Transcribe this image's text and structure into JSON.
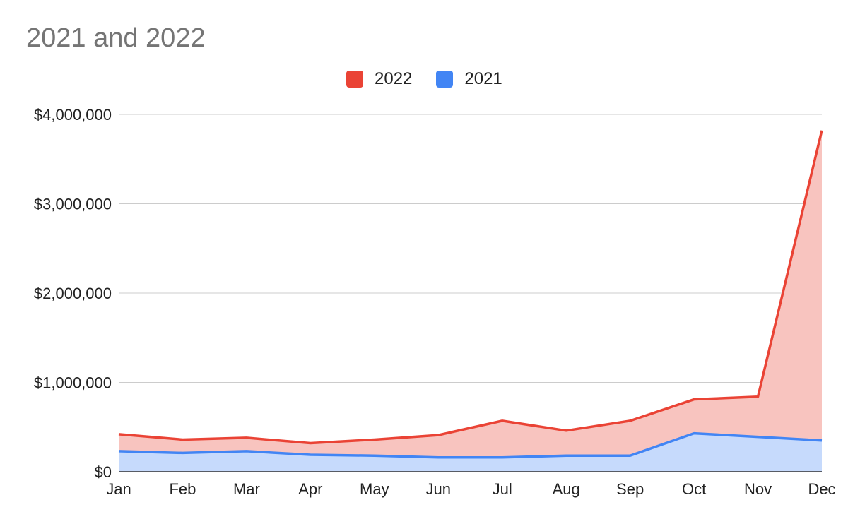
{
  "chart_data": {
    "type": "area",
    "title": "2021 and 2022",
    "xlabel": "",
    "ylabel": "",
    "categories": [
      "Jan",
      "Feb",
      "Mar",
      "Apr",
      "May",
      "Jun",
      "Jul",
      "Aug",
      "Sep",
      "Oct",
      "Nov",
      "Dec"
    ],
    "series": [
      {
        "name": "2022",
        "color": "#ea4335",
        "fill": "#f8c4bf",
        "values": [
          420000,
          360000,
          380000,
          320000,
          360000,
          410000,
          570000,
          460000,
          570000,
          810000,
          840000,
          3820000
        ]
      },
      {
        "name": "2021",
        "color": "#4285f4",
        "fill": "#c6dafc",
        "values": [
          230000,
          210000,
          230000,
          190000,
          180000,
          160000,
          160000,
          180000,
          180000,
          430000,
          390000,
          350000
        ]
      }
    ],
    "ylim": [
      0,
      4000000
    ],
    "yticks": [
      0,
      1000000,
      2000000,
      3000000,
      4000000
    ],
    "ytick_labels": [
      "$0",
      "$1,000,000",
      "$2,000,000",
      "$3,000,000",
      "$4,000,000"
    ],
    "grid": true,
    "legend_position": "top"
  }
}
